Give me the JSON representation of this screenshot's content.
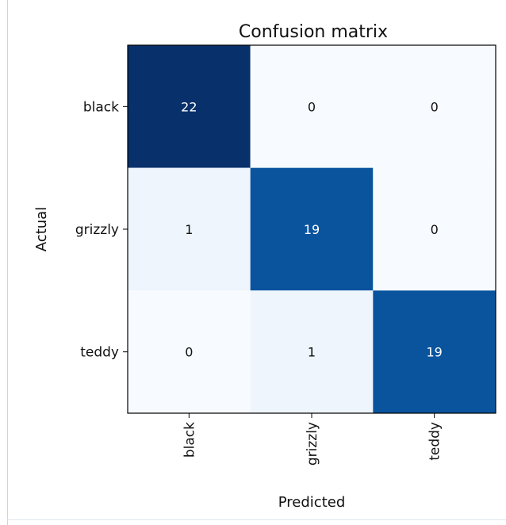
{
  "chart_data": {
    "type": "heatmap",
    "title": "Confusion matrix",
    "xlabel": "Predicted",
    "ylabel": "Actual",
    "x_categories": [
      "black",
      "grizzly",
      "teddy"
    ],
    "y_categories": [
      "black",
      "grizzly",
      "teddy"
    ],
    "values": [
      [
        22,
        0,
        0
      ],
      [
        1,
        19,
        0
      ],
      [
        0,
        1,
        19
      ]
    ],
    "colormap": "Blues",
    "vmin": 0,
    "vmax": 22,
    "grid": false
  }
}
